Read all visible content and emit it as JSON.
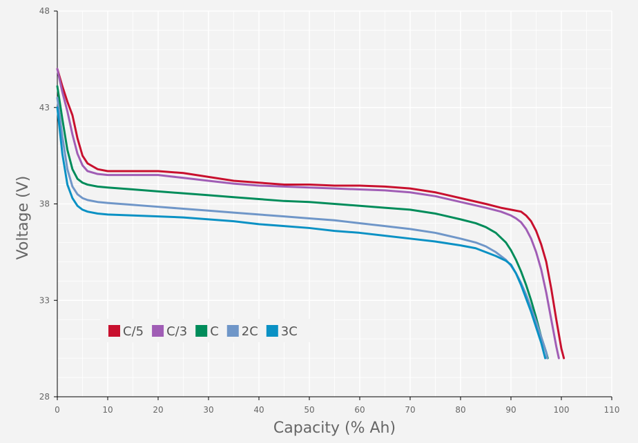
{
  "chart_data": {
    "type": "line",
    "title": "",
    "xlabel": "Capacity (% Ah)",
    "ylabel": "Voltage (V)",
    "xlim": [
      0,
      110
    ],
    "ylim": [
      28,
      48
    ],
    "xticks": [
      "0",
      "10",
      "20",
      "30",
      "40",
      "50",
      "60",
      "70",
      "80",
      "90",
      "100",
      "110"
    ],
    "yticks": [
      "28",
      "33",
      "38",
      "43",
      "48"
    ],
    "grid": true,
    "legend_position": "lower-left",
    "series": [
      {
        "name": "C/5",
        "color": "#c8102e",
        "x": [
          0,
          1,
          2,
          3,
          4,
          5,
          6,
          8,
          10,
          15,
          20,
          25,
          30,
          35,
          40,
          45,
          50,
          55,
          60,
          65,
          70,
          75,
          80,
          85,
          88,
          90,
          92,
          93,
          94,
          95,
          96,
          97,
          98,
          99,
          100,
          100.5
        ],
        "y": [
          45.0,
          44.1,
          43.3,
          42.6,
          41.4,
          40.5,
          40.1,
          39.8,
          39.7,
          39.7,
          39.7,
          39.6,
          39.4,
          39.2,
          39.1,
          39.0,
          39.0,
          38.95,
          38.95,
          38.9,
          38.8,
          38.6,
          38.3,
          38.0,
          37.8,
          37.7,
          37.6,
          37.4,
          37.1,
          36.6,
          35.9,
          35.0,
          33.6,
          32.0,
          30.5,
          30.0
        ]
      },
      {
        "name": "C/3",
        "color": "#a05db5",
        "x": [
          0,
          1,
          2,
          3,
          4,
          5,
          6,
          8,
          10,
          15,
          20,
          25,
          30,
          35,
          40,
          45,
          50,
          55,
          60,
          65,
          70,
          75,
          80,
          85,
          88,
          90,
          91,
          92,
          93,
          94,
          95,
          96,
          97,
          98,
          99,
          99.5
        ],
        "y": [
          45.0,
          43.8,
          42.8,
          41.6,
          40.6,
          40.0,
          39.7,
          39.55,
          39.5,
          39.5,
          39.5,
          39.35,
          39.2,
          39.05,
          38.95,
          38.9,
          38.85,
          38.8,
          38.75,
          38.7,
          38.6,
          38.4,
          38.1,
          37.8,
          37.6,
          37.4,
          37.25,
          37.05,
          36.7,
          36.2,
          35.5,
          34.6,
          33.4,
          32.0,
          30.6,
          30.0
        ]
      },
      {
        "name": "C",
        "color": "#008c5a",
        "x": [
          0,
          1,
          2,
          3,
          4,
          5,
          6,
          8,
          10,
          15,
          20,
          25,
          30,
          35,
          40,
          45,
          50,
          55,
          60,
          65,
          70,
          75,
          80,
          83,
          85,
          87,
          89,
          90,
          91,
          92,
          93,
          94,
          95,
          96,
          97,
          97.3
        ],
        "y": [
          44.1,
          42.4,
          40.8,
          39.8,
          39.3,
          39.1,
          39.0,
          38.9,
          38.85,
          38.75,
          38.65,
          38.55,
          38.45,
          38.35,
          38.25,
          38.15,
          38.1,
          38.0,
          37.9,
          37.8,
          37.7,
          37.5,
          37.2,
          37.0,
          36.8,
          36.5,
          36.0,
          35.6,
          35.1,
          34.5,
          33.8,
          33.0,
          32.1,
          31.1,
          30.3,
          30.0
        ]
      },
      {
        "name": "2C",
        "color": "#6f96c8",
        "x": [
          0,
          1,
          2,
          3,
          4,
          5,
          6,
          8,
          10,
          15,
          20,
          25,
          30,
          35,
          40,
          45,
          50,
          55,
          60,
          65,
          70,
          75,
          80,
          83,
          85,
          87,
          89,
          90,
          91,
          92,
          93,
          94,
          95,
          96,
          97,
          97.2
        ],
        "y": [
          43.5,
          41.5,
          39.8,
          38.9,
          38.5,
          38.3,
          38.2,
          38.1,
          38.05,
          37.95,
          37.85,
          37.75,
          37.65,
          37.55,
          37.45,
          37.35,
          37.25,
          37.15,
          37.0,
          36.85,
          36.7,
          36.5,
          36.2,
          36.0,
          35.8,
          35.5,
          35.1,
          34.8,
          34.4,
          33.9,
          33.3,
          32.6,
          31.9,
          31.1,
          30.3,
          30.0
        ]
      },
      {
        "name": "3C",
        "color": "#0a91c4",
        "x": [
          0,
          1,
          2,
          3,
          4,
          5,
          6,
          8,
          10,
          15,
          20,
          25,
          30,
          35,
          40,
          45,
          50,
          55,
          60,
          65,
          70,
          75,
          80,
          83,
          85,
          87,
          89,
          90,
          91,
          92,
          93,
          94,
          95,
          96,
          96.8
        ],
        "y": [
          43.0,
          40.6,
          39.0,
          38.3,
          37.9,
          37.7,
          37.6,
          37.5,
          37.45,
          37.4,
          37.35,
          37.3,
          37.2,
          37.1,
          36.95,
          36.85,
          36.75,
          36.6,
          36.5,
          36.35,
          36.2,
          36.05,
          35.85,
          35.7,
          35.5,
          35.3,
          35.05,
          34.85,
          34.4,
          33.8,
          33.1,
          32.4,
          31.6,
          30.8,
          30.0
        ]
      }
    ]
  }
}
